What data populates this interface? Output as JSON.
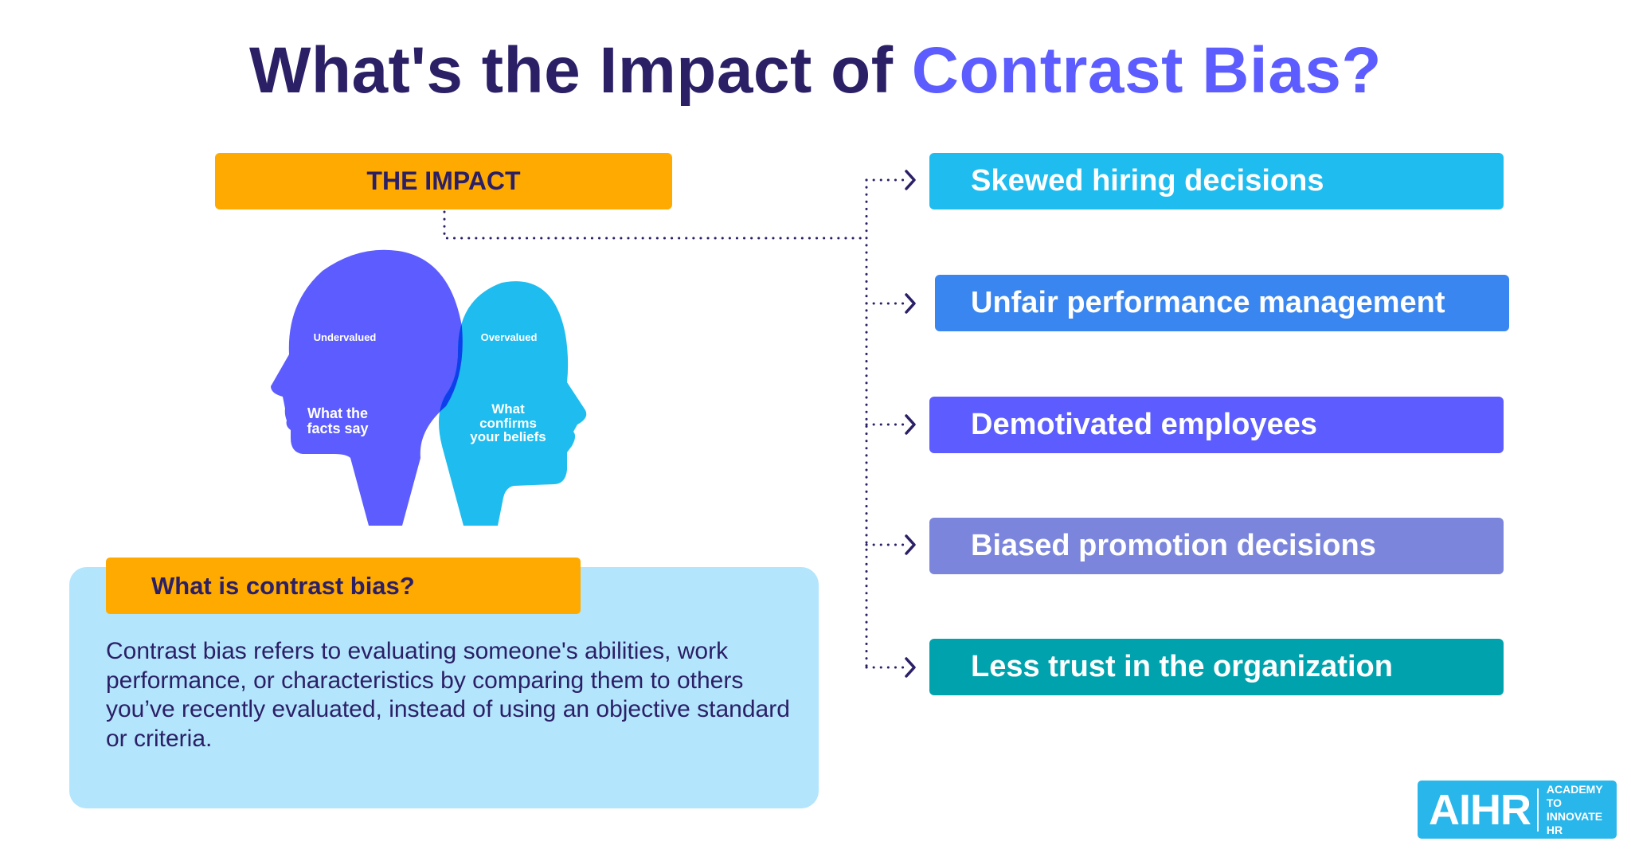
{
  "title": {
    "prefix": "What's the Impact of ",
    "accent": "Contrast Bias?"
  },
  "impact_label": "THE IMPACT",
  "heads": {
    "left": {
      "tag": "Undervalued",
      "lines": [
        "What the",
        "facts say"
      ]
    },
    "right": {
      "tag": "Overvalued",
      "lines": [
        "What",
        "confirms",
        "your beliefs"
      ]
    }
  },
  "impacts": [
    {
      "label": "Skewed hiring decisions",
      "color": "#1fbcef"
    },
    {
      "label": "Unfair performance management",
      "color": "#3a86f0"
    },
    {
      "label": "Demotivated employees",
      "color": "#5c5cff"
    },
    {
      "label": "Biased promotion decisions",
      "color": "#7b85db"
    },
    {
      "label": "Less trust in the organization",
      "color": "#00a3ad"
    }
  ],
  "definition": {
    "heading": "What is contrast bias?",
    "text": "Contrast bias refers to evaluating someone's abilities, work performance, or characteristics by comparing them to others you’ve recently evaluated, instead of using an objective standard or criteria."
  },
  "logo": {
    "mark": "AIHR",
    "line1": "ACADEMY TO",
    "line2": "INNOVATE HR"
  },
  "colors": {
    "navy": "#2b1f66",
    "orange": "#ffaa00",
    "panel": "#b3e5fc",
    "purple_head": "#5c5cff",
    "blue_head": "#1fbcef",
    "overlap": "#0d40eb"
  }
}
